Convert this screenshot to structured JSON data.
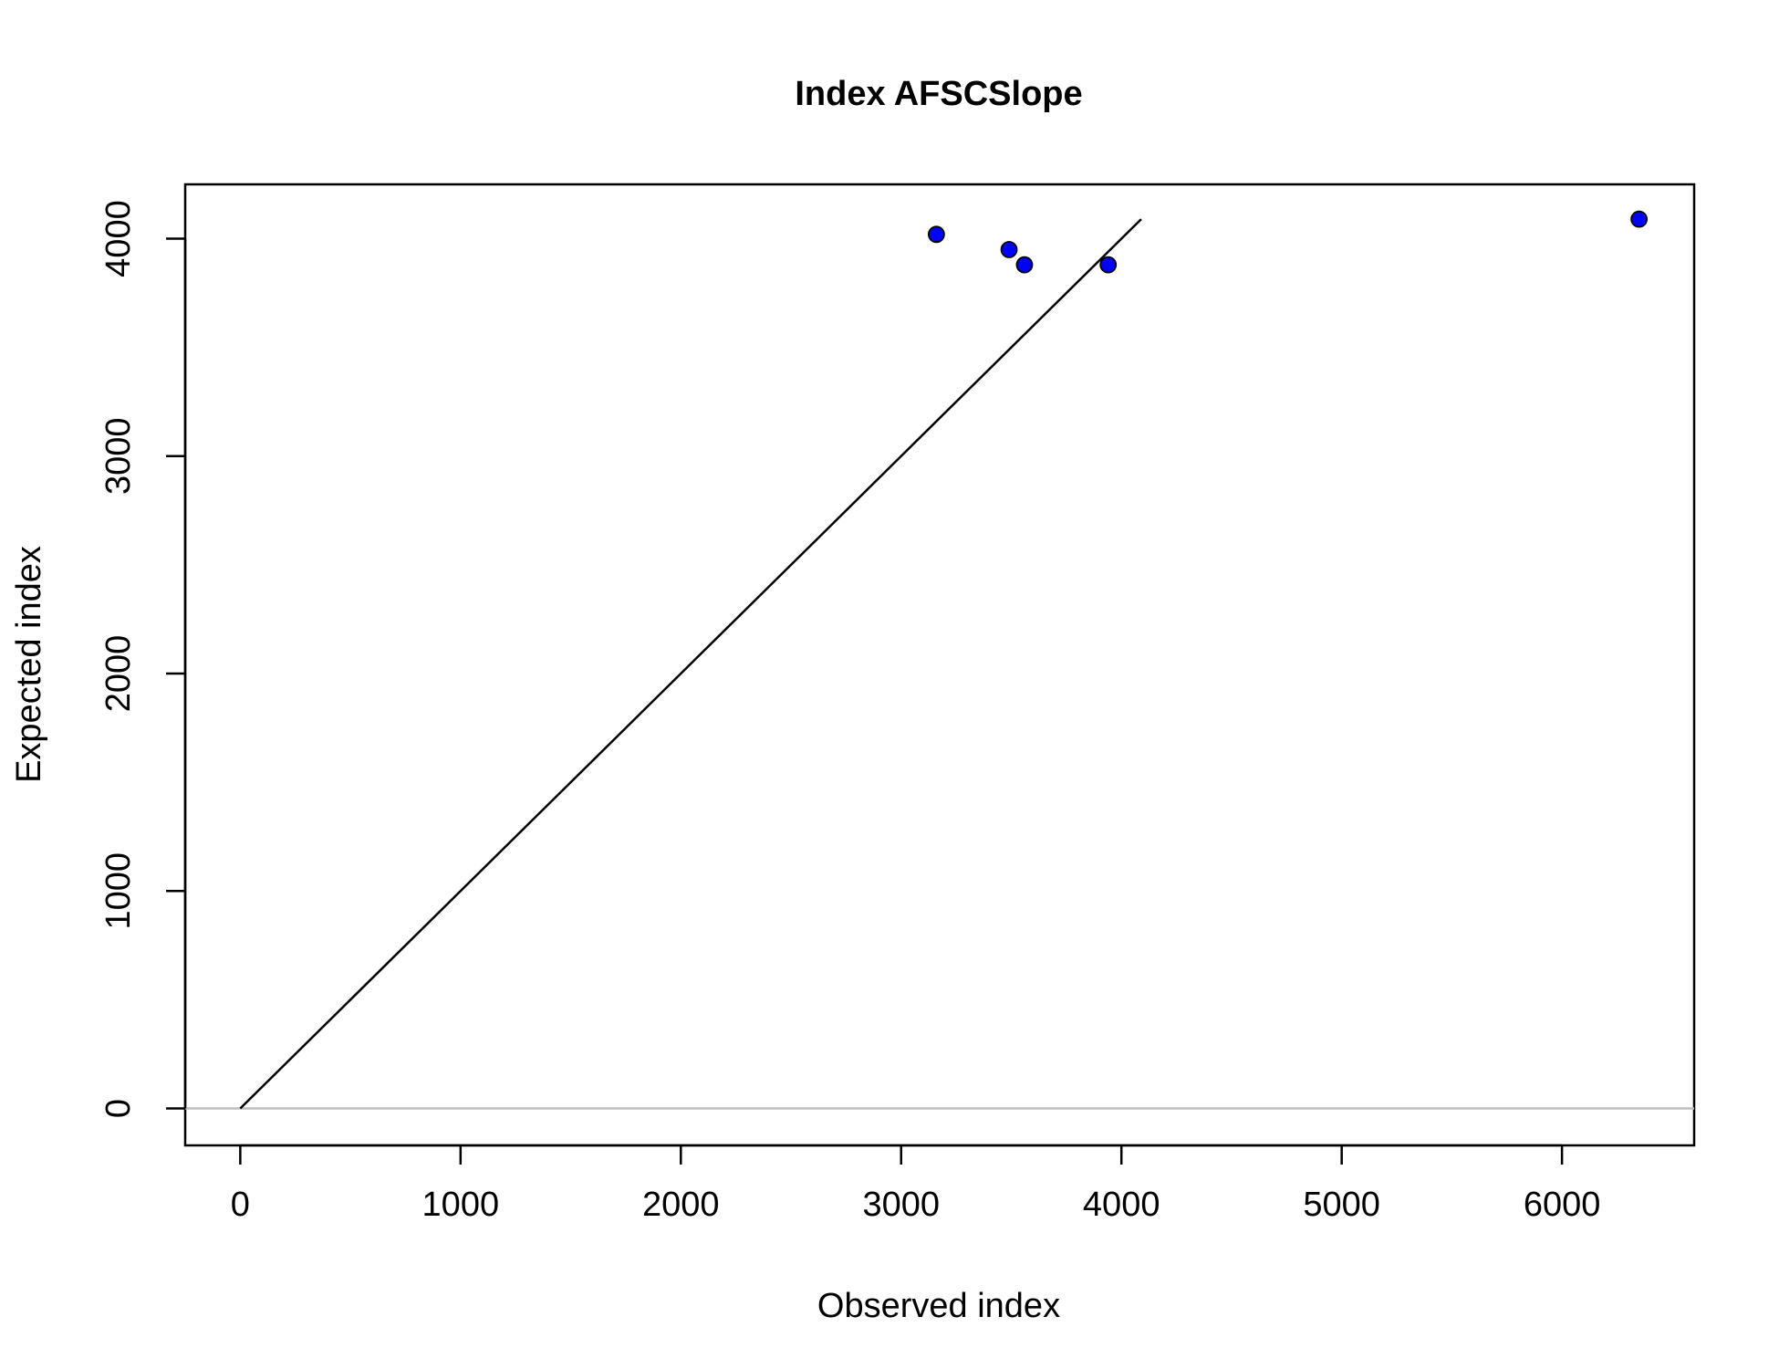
{
  "chart_data": {
    "type": "scatter",
    "title": "Index AFSCSlope",
    "xlabel": "Observed index",
    "ylabel": "Expected index",
    "xlim": [
      -250,
      6600
    ],
    "ylim": [
      -170,
      4250
    ],
    "xticks": [
      0,
      1000,
      2000,
      3000,
      4000,
      5000,
      6000
    ],
    "yticks": [
      0,
      1000,
      2000,
      3000,
      4000
    ],
    "xtick_labels": [
      "0",
      "1000",
      "2000",
      "3000",
      "4000",
      "5000",
      "6000"
    ],
    "ytick_labels": [
      "0",
      "1000",
      "2000",
      "3000",
      "4000"
    ],
    "grid": false,
    "legend": "none",
    "points": [
      {
        "x": 3160,
        "y": 4020
      },
      {
        "x": 3490,
        "y": 3950
      },
      {
        "x": 3560,
        "y": 3880
      },
      {
        "x": 3940,
        "y": 3880
      },
      {
        "x": 6350,
        "y": 4090
      }
    ],
    "identity_line": {
      "x": [
        0,
        4090
      ],
      "y": [
        0,
        4090
      ]
    },
    "reference_hline": 0,
    "colors": {
      "point_fill": "#0000ff",
      "point_stroke": "#000000",
      "identity_line": "#000000",
      "reference_line": "#bebebe"
    }
  }
}
